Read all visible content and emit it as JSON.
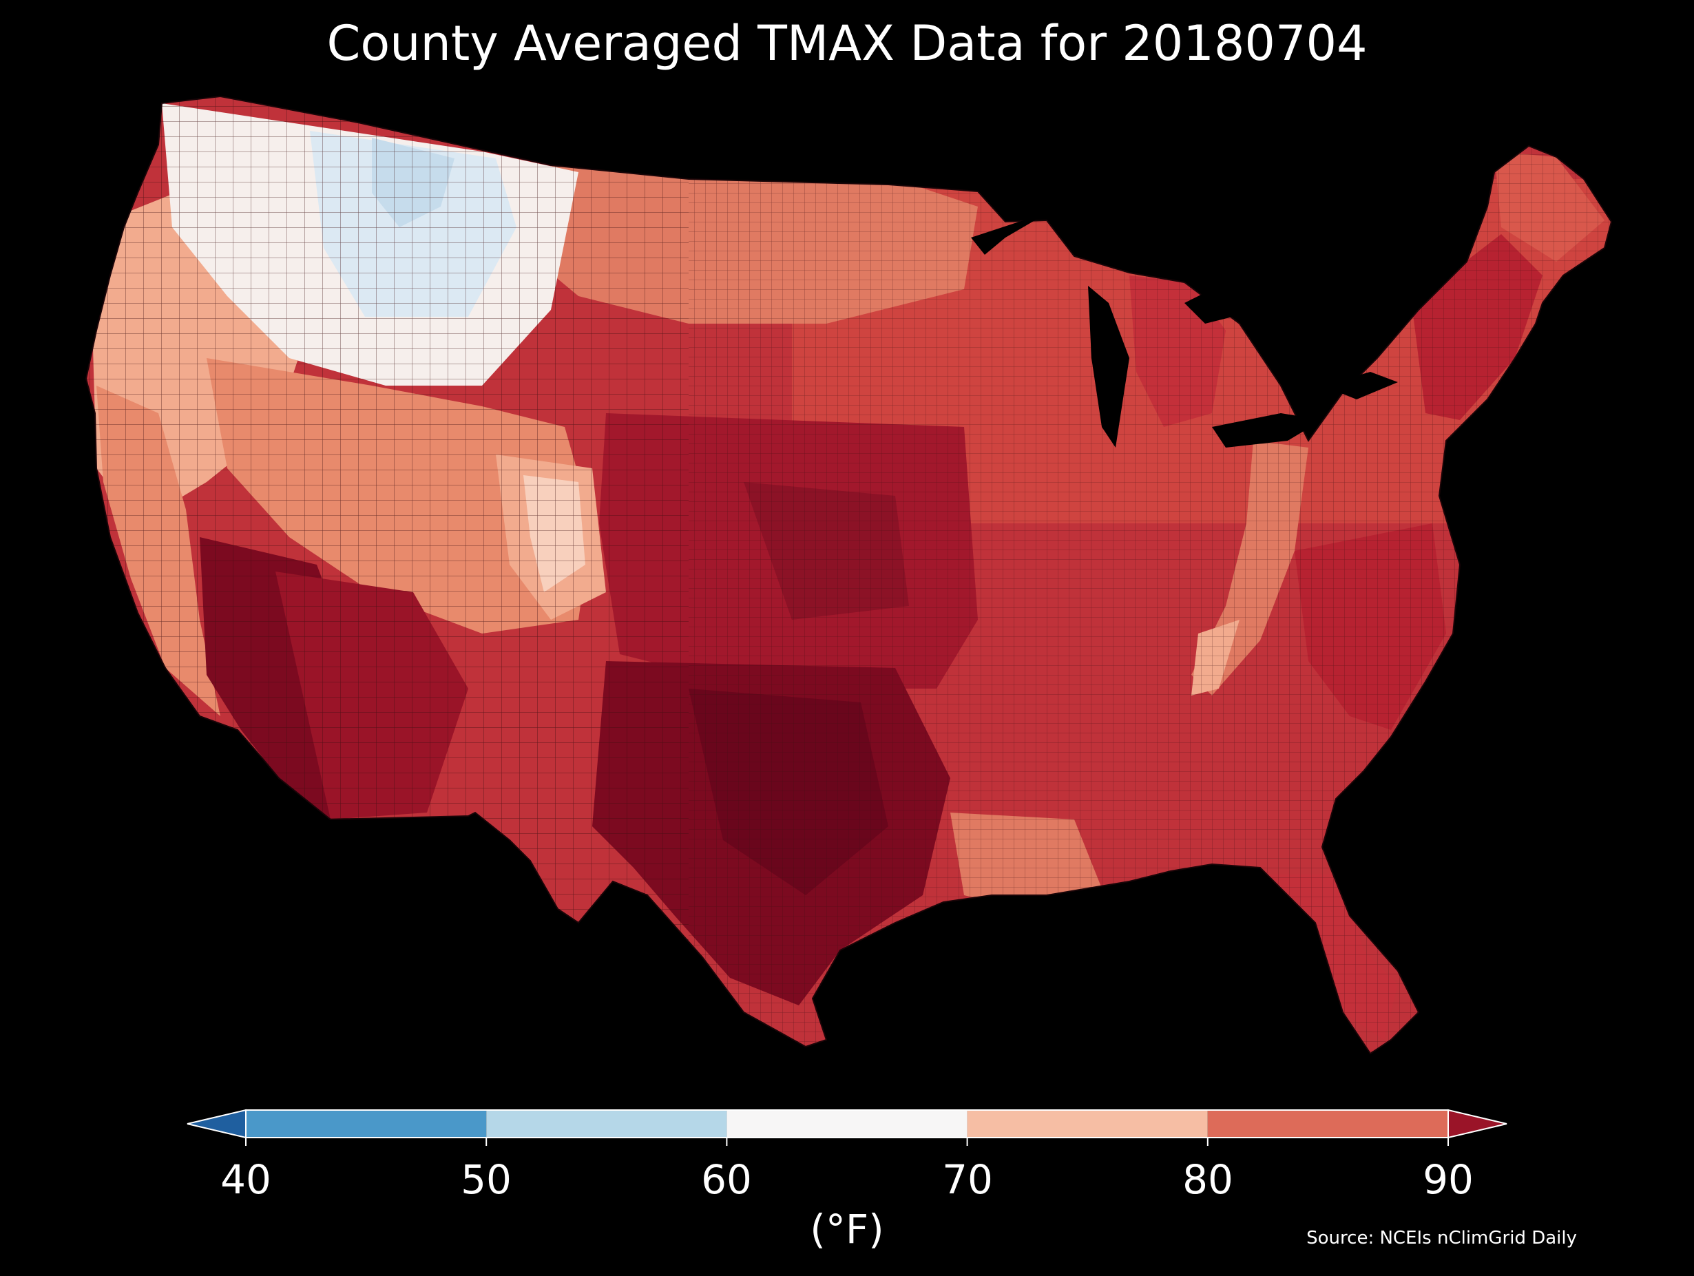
{
  "title": "County Averaged TMAX Data for 20180704",
  "source": "Source: NCEIs nClimGrid Daily",
  "colorbar": {
    "units": "(°F)",
    "ticks": [
      "40",
      "50",
      "60",
      "70",
      "80",
      "90"
    ],
    "bins": [
      {
        "from": 40,
        "to": 50,
        "color": "#4a98c9"
      },
      {
        "from": 50,
        "to": 60,
        "color": "#b5d7e8"
      },
      {
        "from": 60,
        "to": 70,
        "color": "#f7f6f6"
      },
      {
        "from": 70,
        "to": 80,
        "color": "#f6bea4"
      },
      {
        "from": 80,
        "to": 90,
        "color": "#dd6b59"
      }
    ],
    "under_color": "#1f5f9f",
    "over_color": "#9a1428",
    "extend": "both"
  },
  "map": {
    "region": "Contiguous United States, county level",
    "variable": "TMAX",
    "date": "20180704",
    "land_base_color": "#c0323a",
    "ocean_color": "#000000",
    "county_border_color": "#3a0d10",
    "palette_by_level": {
      "below_50": "#c6dcec",
      "50_60": "#dce9f3",
      "60_70": "#f6efec",
      "70_80": "#f2ab8e",
      "80_85": "#d9584c",
      "85_90": "#b72231",
      "above_90": "#7c0a20"
    }
  }
}
